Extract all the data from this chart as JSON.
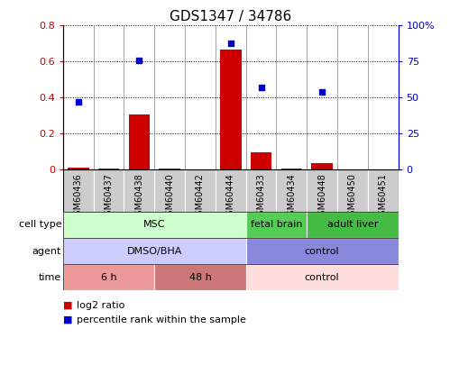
{
  "title": "GDS1347 / 34786",
  "samples": [
    "GSM60436",
    "GSM60437",
    "GSM60438",
    "GSM60440",
    "GSM60442",
    "GSM60444",
    "GSM60433",
    "GSM60434",
    "GSM60448",
    "GSM60450",
    "GSM60451"
  ],
  "log2_ratio": [
    0.01,
    0.005,
    0.305,
    0.005,
    0.003,
    0.665,
    0.095,
    0.005,
    0.038,
    0.003,
    0.002
  ],
  "percentile_rank": [
    47,
    null,
    76,
    null,
    null,
    88,
    57,
    null,
    54,
    null,
    null
  ],
  "ylim_left": [
    0,
    0.8
  ],
  "ylim_right": [
    0,
    100
  ],
  "yticks_left": [
    0,
    0.2,
    0.4,
    0.6,
    0.8
  ],
  "yticks_right": [
    0,
    25,
    50,
    75,
    100
  ],
  "ytick_labels_left": [
    "0",
    "0.2",
    "0.4",
    "0.6",
    "0.8"
  ],
  "ytick_labels_right": [
    "0",
    "25",
    "50",
    "75",
    "100%"
  ],
  "bar_color": "#cc0000",
  "dot_color": "#0000cc",
  "cell_type_groups": [
    {
      "label": "MSC",
      "start": 0,
      "end": 6,
      "color": "#ccffcc"
    },
    {
      "label": "fetal brain",
      "start": 6,
      "end": 8,
      "color": "#55cc55"
    },
    {
      "label": "adult liver",
      "start": 8,
      "end": 11,
      "color": "#44bb44"
    }
  ],
  "agent_groups": [
    {
      "label": "DMSO/BHA",
      "start": 0,
      "end": 6,
      "color": "#ccccff"
    },
    {
      "label": "control",
      "start": 6,
      "end": 11,
      "color": "#8888dd"
    }
  ],
  "time_groups": [
    {
      "label": "6 h",
      "start": 0,
      "end": 3,
      "color": "#ee9999"
    },
    {
      "label": "48 h",
      "start": 3,
      "end": 6,
      "color": "#cc7777"
    },
    {
      "label": "control",
      "start": 6,
      "end": 11,
      "color": "#ffdddd"
    }
  ],
  "row_labels": [
    "cell type",
    "agent",
    "time"
  ],
  "legend_label_red": "log2 ratio",
  "legend_label_blue": "percentile rank within the sample",
  "annotation_color": "#cc0000",
  "tick_bg_color": "#cccccc"
}
